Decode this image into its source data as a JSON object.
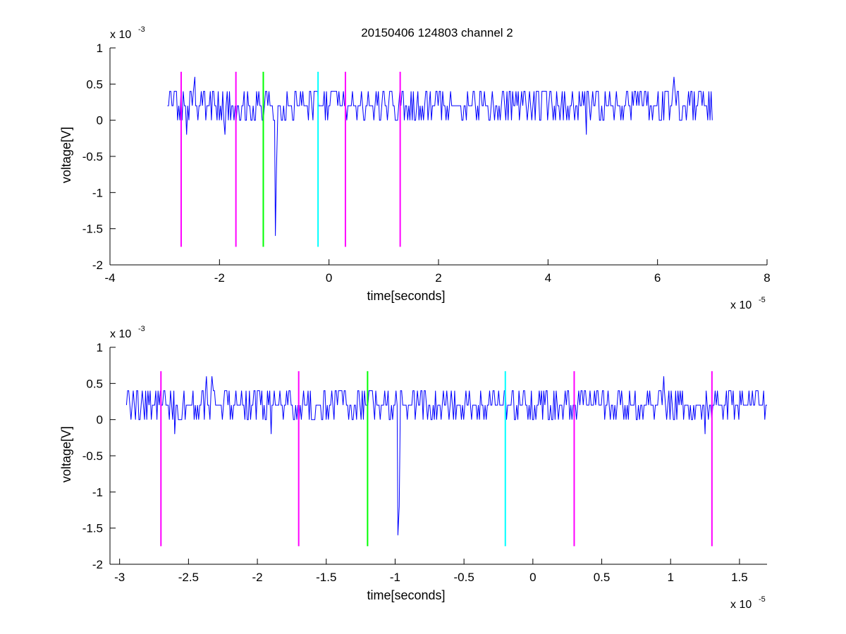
{
  "chart_data": [
    {
      "type": "line",
      "title": "20150406 124803 channel 2",
      "xlabel": "time[seconds]",
      "ylabel": "voltage[V]",
      "x_multiplier_label": "x 10",
      "x_multiplier_exp": "-5",
      "y_multiplier_label": "x 10",
      "y_multiplier_exp": "-3",
      "xlim": [
        -4,
        8
      ],
      "ylim": [
        -2,
        1
      ],
      "xticks": [
        -4,
        -2,
        0,
        2,
        4,
        6,
        8
      ],
      "xtick_labels": [
        "-4",
        "-2",
        "0",
        "2",
        "4",
        "6",
        "8"
      ],
      "yticks": [
        -2,
        -1.5,
        -1,
        -0.5,
        0,
        0.5,
        1
      ],
      "ytick_labels": [
        "-2",
        "-1.5",
        "-1",
        "-0.5",
        "0",
        "0.5",
        "1"
      ],
      "grid": false,
      "signal": {
        "color": "#0000ff",
        "x_range": [
          -2.95,
          7.0
        ],
        "baseline": 0.2,
        "spikes": [
          {
            "x": -0.98,
            "y": -1.6
          },
          {
            "x": -0.96,
            "y": -0.7
          },
          {
            "x": -1.9,
            "y": -0.2
          },
          {
            "x": -2.6,
            "y": -0.2
          },
          {
            "x": 4.7,
            "y": -0.2
          },
          {
            "x": 6.3,
            "y": 0.6
          },
          {
            "x": -2.45,
            "y": 0.6
          }
        ]
      },
      "markers": [
        {
          "x": -2.7,
          "color": "#ff00ff",
          "y_range": [
            -1.75,
            0.67
          ]
        },
        {
          "x": -1.7,
          "color": "#ff00ff",
          "y_range": [
            -1.75,
            0.67
          ]
        },
        {
          "x": -1.2,
          "color": "#00ff00",
          "y_range": [
            -1.75,
            0.67
          ]
        },
        {
          "x": -0.2,
          "color": "#00ffff",
          "y_range": [
            -1.75,
            0.67
          ]
        },
        {
          "x": 0.3,
          "color": "#ff00ff",
          "y_range": [
            -1.75,
            0.67
          ]
        },
        {
          "x": 1.3,
          "color": "#ff00ff",
          "y_range": [
            -1.75,
            0.67
          ]
        }
      ]
    },
    {
      "type": "line",
      "xlabel": "time[seconds]",
      "ylabel": "voltage[V]",
      "x_multiplier_label": "x 10",
      "x_multiplier_exp": "-5",
      "y_multiplier_label": "x 10",
      "y_multiplier_exp": "-3",
      "xlim": [
        -3.07,
        1.7
      ],
      "ylim": [
        -2,
        1
      ],
      "xticks": [
        -3,
        -2.5,
        -2,
        -1.5,
        -1,
        -0.5,
        0,
        0.5,
        1,
        1.5
      ],
      "xtick_labels": [
        "-3",
        "-2.5",
        "-2",
        "-1.5",
        "-1",
        "-0.5",
        "0",
        "0.5",
        "1",
        "1.5"
      ],
      "yticks": [
        -2,
        -1.5,
        -1,
        -0.5,
        0,
        0.5,
        1
      ],
      "ytick_labels": [
        "-2",
        "-1.5",
        "-1",
        "-0.5",
        "0",
        "0.5",
        "1"
      ],
      "grid": false,
      "signal": {
        "color": "#0000ff",
        "x_range": [
          -2.95,
          1.7
        ],
        "baseline": 0.2,
        "spikes": [
          {
            "x": -0.98,
            "y": -1.6
          },
          {
            "x": -0.97,
            "y": -1.2
          },
          {
            "x": -2.6,
            "y": -0.2
          },
          {
            "x": -1.9,
            "y": -0.2
          },
          {
            "x": 1.25,
            "y": -0.2
          },
          {
            "x": 0.95,
            "y": 0.6
          },
          {
            "x": -2.37,
            "y": 0.6
          },
          {
            "x": -2.33,
            "y": 0.6
          }
        ]
      },
      "markers": [
        {
          "x": -2.7,
          "color": "#ff00ff",
          "y_range": [
            -1.75,
            0.67
          ]
        },
        {
          "x": -1.7,
          "color": "#ff00ff",
          "y_range": [
            -1.75,
            0.67
          ]
        },
        {
          "x": -1.2,
          "color": "#00ff00",
          "y_range": [
            -1.75,
            0.67
          ]
        },
        {
          "x": -0.2,
          "color": "#00ffff",
          "y_range": [
            -1.75,
            0.67
          ]
        },
        {
          "x": 0.3,
          "color": "#ff00ff",
          "y_range": [
            -1.75,
            0.67
          ]
        },
        {
          "x": 1.3,
          "color": "#ff00ff",
          "y_range": [
            -1.75,
            0.67
          ]
        }
      ]
    }
  ]
}
